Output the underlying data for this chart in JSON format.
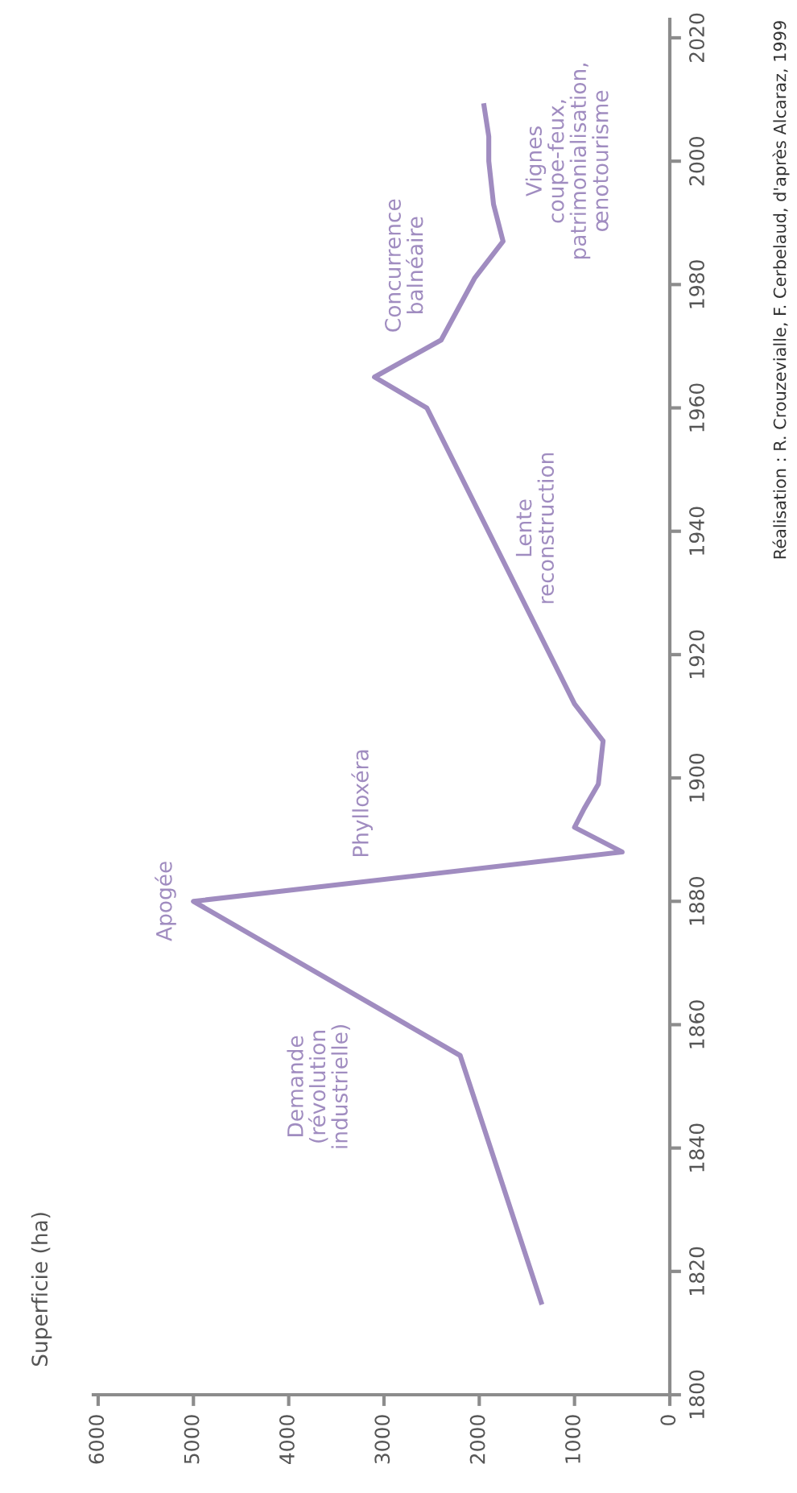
{
  "chart_data": {
    "type": "line",
    "orientation": "horizontal",
    "ylabel": "Superficie (ha)",
    "x": [
      1815,
      1855,
      1880,
      1888,
      1892,
      1895,
      1899,
      1906,
      1912,
      1960,
      1965,
      1971,
      1981,
      1987,
      1993,
      2000,
      2004,
      2009
    ],
    "series": [
      {
        "color": "#a08cc0",
        "values": [
          1350,
          2200,
          5000,
          500,
          1000,
          900,
          750,
          700,
          1000,
          2550,
          3100,
          2400,
          2050,
          1750,
          1850,
          1900,
          1900,
          1950
        ]
      }
    ],
    "xlim": [
      6050,
      0
    ],
    "xticks": [
      0,
      1000,
      2000,
      3000,
      4000,
      5000,
      6000
    ],
    "ylim": [
      1800,
      2023
    ],
    "yticks": [
      1800,
      1820,
      1840,
      1860,
      1880,
      1900,
      1920,
      1940,
      1960,
      1980,
      2000,
      2020
    ],
    "grid": false,
    "marker": "none",
    "line_style": "solid",
    "annotations": [
      "Demande\n(révolution\nindustrielle)",
      "Apogée",
      "Phylloxéra",
      "Lente\nreconstruction",
      "Concurrence\nbalnéaire",
      "Vignes\ncoupe-feux,\npatrimonialisation,\nœnotourisme",
      "Réalisation : R. Crouzevialle, F. Cerbelaud, d'après Alcaraz, 1999"
    ]
  }
}
